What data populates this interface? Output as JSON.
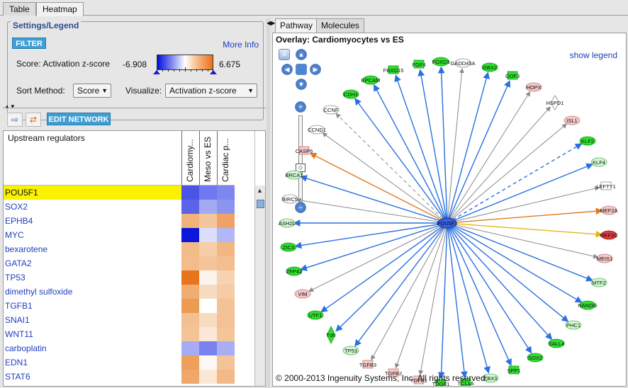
{
  "tabs": {
    "table": "Table",
    "heatmap": "Heatmap"
  },
  "settings": {
    "title": "Settings/Legend",
    "filter_label": "FILTER",
    "more_info": "More Info",
    "score_label": "Score: Activation z-score",
    "score_min": "-6.908",
    "score_max": "6.675",
    "sort_label": "Sort Method:",
    "sort_value": "Score",
    "visualize_label": "Visualize:",
    "visualize_value": "Activation z-score"
  },
  "toolbar": {
    "edit_network": "EDIT NETWORK"
  },
  "table": {
    "header": "Upstream regulators",
    "columns": [
      "Cardiomy...",
      "Meso vs ES",
      "Cardiac p..."
    ],
    "rows": [
      {
        "name": "POU5F1",
        "colors": [
          "#4a55e8",
          "#6f78ee",
          "#7e86ef"
        ]
      },
      {
        "name": "SOX2",
        "colors": [
          "#5a63ea",
          "#a3a9f3",
          "#8d94f0"
        ]
      },
      {
        "name": "EPHB4",
        "colors": [
          "#f0b37a",
          "#f3c79e",
          "#eea265"
        ]
      },
      {
        "name": "MYC",
        "colors": [
          "#0a18dc",
          "#dcdffb",
          "#b2b7f5"
        ]
      },
      {
        "name": "bexarotene",
        "colors": [
          "#f2bb88",
          "#f6cfa8",
          "#f1b782"
        ]
      },
      {
        "name": "GATA2",
        "colors": [
          "#f2bc8b",
          "#f4c59b",
          "#f3bf90"
        ]
      },
      {
        "name": "TP53",
        "colors": [
          "#e8741c",
          "#fbf3ec",
          "#f6d3b2"
        ]
      },
      {
        "name": "dimethyl sulfoxide",
        "colors": [
          "#f0ad73",
          "#f8dcc2",
          "#f5cca5"
        ]
      },
      {
        "name": "TGFB1",
        "colors": [
          "#ed9a52",
          "#ffffff",
          "#f3c396"
        ]
      },
      {
        "name": "SNAI1",
        "colors": [
          "#f3c092",
          "#f8dcc1",
          "#f3c193"
        ]
      },
      {
        "name": "WNT11",
        "colors": [
          "#f4c497",
          "#fce8d6",
          "#f4c597"
        ]
      },
      {
        "name": "carboplatin",
        "colors": [
          "#a6abf4",
          "#7a82ef",
          "#a9aef4"
        ]
      },
      {
        "name": "EDN1",
        "colors": [
          "#ef9f5c",
          "#fdf8f3",
          "#f3c498"
        ]
      },
      {
        "name": "STAT6",
        "colors": [
          "#f0a86a",
          "#fce7d4",
          "#f2b888"
        ]
      }
    ]
  },
  "right_tabs": {
    "pathway": "Pathway",
    "molecules": "Molecules"
  },
  "network": {
    "overlay_title": "Overlay: Cardiomyocytes vs ES",
    "show_legend": "show legend",
    "copyright": "© 2000-2013 Ingenuity Systems, Inc. All rights reserved.",
    "center": "POU5F1",
    "nodes": [
      {
        "label": "FGF4",
        "color": "green"
      },
      {
        "label": "FOXD3",
        "color": "green"
      },
      {
        "label": "GADD45A",
        "color": "white"
      },
      {
        "label": "GBX2",
        "color": "green"
      },
      {
        "label": "GDF3",
        "color": "green"
      },
      {
        "label": "HOPX",
        "color": "pink"
      },
      {
        "label": "HSPD1",
        "color": "white"
      },
      {
        "label": "ISL1",
        "color": "pink"
      },
      {
        "label": "KLF2",
        "color": "green"
      },
      {
        "label": "KLF4",
        "color": "lightgreen"
      },
      {
        "label": "LEFTY1",
        "color": "white"
      },
      {
        "label": "MEF2A",
        "color": "pink"
      },
      {
        "label": "MEF2C",
        "color": "red"
      },
      {
        "label": "MEIS1",
        "color": "pink"
      },
      {
        "label": "MTF2",
        "color": "lightgreen"
      },
      {
        "label": "NANOG",
        "color": "green"
      },
      {
        "label": "PHC1",
        "color": "lightgreen"
      },
      {
        "label": "SALL4",
        "color": "green"
      },
      {
        "label": "SOX2",
        "color": "green"
      },
      {
        "label": "SPP1",
        "color": "green"
      },
      {
        "label": "TBX3",
        "color": "lightgreen"
      },
      {
        "label": "TCL1A",
        "color": "green"
      },
      {
        "label": "TDGF1",
        "color": "green"
      },
      {
        "label": "TGFB1",
        "color": "pink"
      },
      {
        "label": "TGFB2",
        "color": "pink"
      },
      {
        "label": "TGFB3",
        "color": "pink"
      },
      {
        "label": "TP53",
        "color": "lightgreen"
      },
      {
        "label": "Tdh",
        "color": "green"
      },
      {
        "label": "UTF1",
        "color": "green"
      },
      {
        "label": "VIM",
        "color": "pink"
      },
      {
        "label": "ZFP42",
        "color": "green"
      },
      {
        "label": "ZIC3",
        "color": "green"
      },
      {
        "label": "ASH2L",
        "color": "lightgreen"
      },
      {
        "label": "BIRC5",
        "color": "white"
      },
      {
        "label": "BRCA1",
        "color": "lightgreen"
      },
      {
        "label": "CASP6",
        "color": "pink"
      },
      {
        "label": "CCND1",
        "color": "white"
      },
      {
        "label": "CCNF",
        "color": "white"
      },
      {
        "label": "CDH1",
        "color": "green"
      },
      {
        "label": "EPCAM",
        "color": "green"
      },
      {
        "label": "FBXO15",
        "color": "green"
      }
    ]
  },
  "colors": {
    "accent_blue": "#3f9ed3",
    "selection": "#fbf200",
    "edge_blue": "#2a70e0",
    "edge_orange": "#e07b20"
  }
}
